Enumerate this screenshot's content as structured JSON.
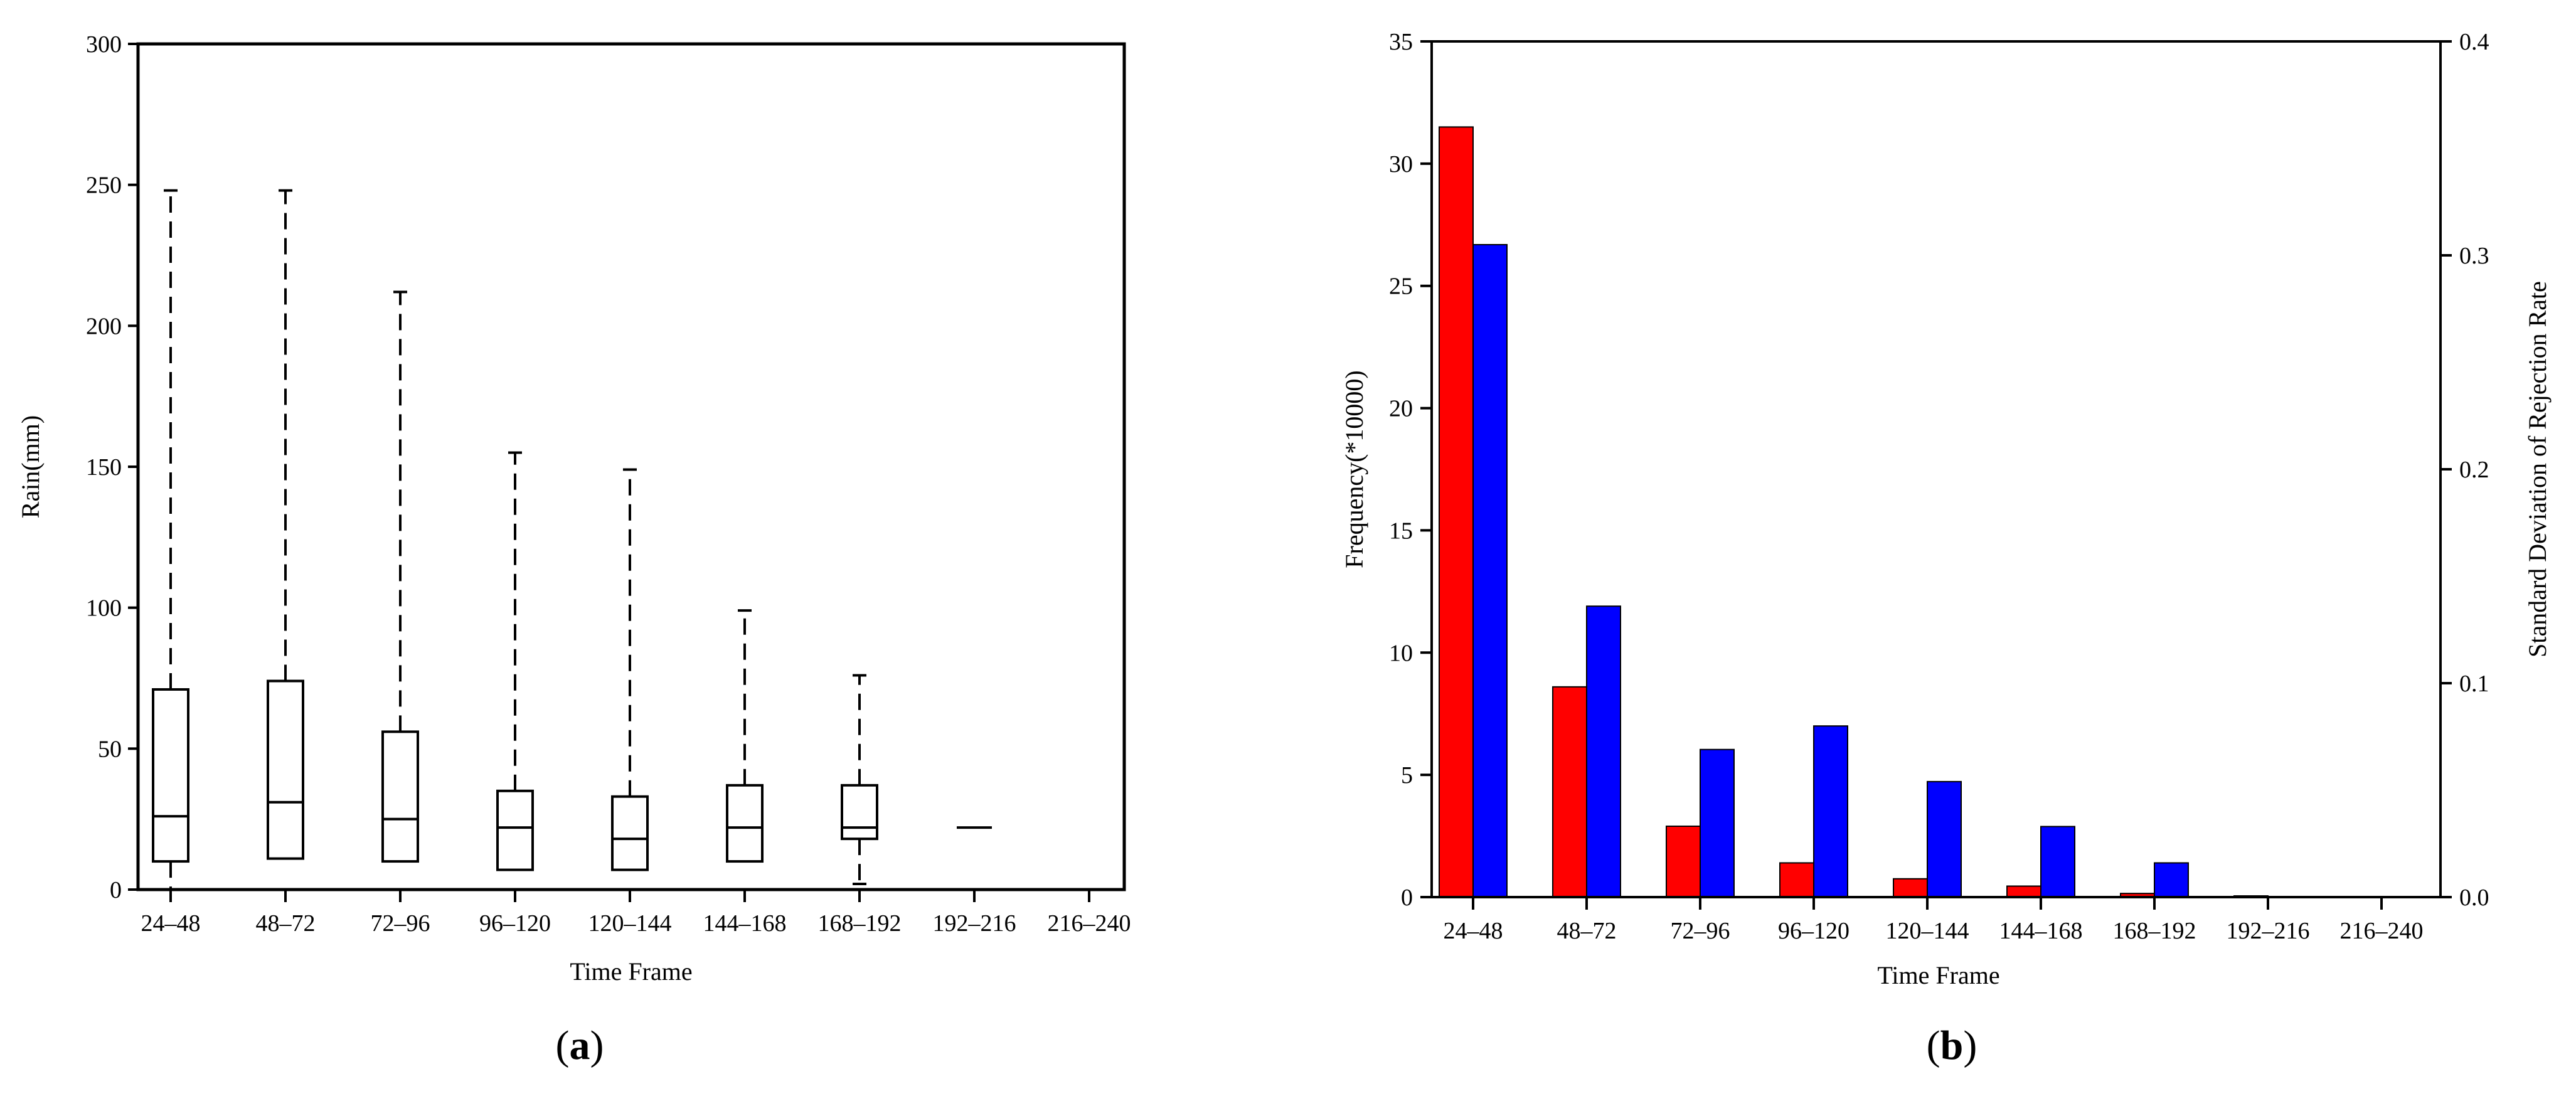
{
  "chart_data": [
    {
      "type": "box",
      "panel_label": "a",
      "xlabel": "Time Frame",
      "ylabel": "Rain(mm)",
      "ylim": [
        0,
        300
      ],
      "yticks": [
        0,
        50,
        100,
        150,
        200,
        250,
        300
      ],
      "categories": [
        "24–48",
        "48–72",
        "72–96",
        "96–120",
        "120–144",
        "144–168",
        "168–192",
        "192–216",
        "216–240"
      ],
      "boxes": [
        {
          "category": "24–48",
          "whisker_low": 0,
          "q1": 10,
          "median": 26,
          "q3": 71,
          "whisker_high": 248
        },
        {
          "category": "48–72",
          "whisker_low": 11,
          "q1": 11,
          "median": 31,
          "q3": 74,
          "whisker_high": 248
        },
        {
          "category": "72–96",
          "whisker_low": 10,
          "q1": 10,
          "median": 25,
          "q3": 56,
          "whisker_high": 212
        },
        {
          "category": "96–120",
          "whisker_low": 7,
          "q1": 7,
          "median": 22,
          "q3": 35,
          "whisker_high": 155
        },
        {
          "category": "120–144",
          "whisker_low": 7,
          "q1": 7,
          "median": 18,
          "q3": 33,
          "whisker_high": 149
        },
        {
          "category": "144–168",
          "whisker_low": 10,
          "q1": 10,
          "median": 22,
          "q3": 37,
          "whisker_high": 99
        },
        {
          "category": "168–192",
          "whisker_low": 2,
          "q1": 18,
          "median": 22,
          "q3": 37,
          "whisker_high": 76
        },
        {
          "category": "192–216",
          "whisker_low": 22,
          "q1": 22,
          "median": 22,
          "q3": 22,
          "whisker_high": 22
        },
        {
          "category": "216–240",
          "whisker_low": null,
          "q1": null,
          "median": null,
          "q3": null,
          "whisker_high": null
        }
      ],
      "grid": false,
      "style": {
        "box_color": "#000000",
        "whisker_dash": true
      }
    },
    {
      "type": "bar",
      "panel_label": "b",
      "xlabel": "Time Frame",
      "ylabel": "Frequency(*10000)",
      "y2label": "Standard Deviation of Rejection Rate",
      "ylim": [
        0,
        35
      ],
      "y2lim": [
        0,
        0.4
      ],
      "yticks": [
        0,
        5,
        10,
        15,
        20,
        25,
        30,
        35
      ],
      "y2ticks": [
        "0.0",
        "0.1",
        "0.2",
        "0.3",
        "0.4"
      ],
      "categories": [
        "24–48",
        "48–72",
        "72–96",
        "96–120",
        "120–144",
        "144–168",
        "168–192",
        "192–216",
        "216–240"
      ],
      "series": [
        {
          "axis": "left",
          "color": "#ff0000",
          "values": [
            31.5,
            8.6,
            2.9,
            1.4,
            0.75,
            0.45,
            0.15,
            0.05,
            0
          ]
        },
        {
          "axis": "right",
          "color": "#0000ff",
          "values": [
            0.305,
            0.136,
            0.069,
            0.08,
            0.054,
            0.033,
            0.016,
            0,
            0
          ]
        }
      ],
      "grid": false
    }
  ]
}
